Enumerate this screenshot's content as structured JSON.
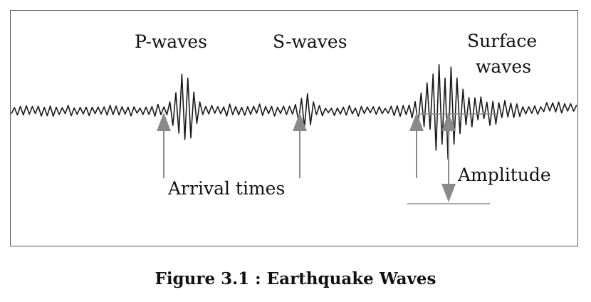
{
  "diagram": {
    "labels": {
      "p_waves": "P-waves",
      "s_waves": "S-waves",
      "surface_waves_line1": "Surface",
      "surface_waves_line2": "waves",
      "arrival_times": "Arrival times",
      "amplitude": "Amplitude"
    },
    "caption": "Figure 3.1 : Earthquake Waves",
    "colors": {
      "trace": "#1a1a1a",
      "arrows": "#8a8a8a",
      "frame": "#555555",
      "text": "#111111"
    }
  }
}
